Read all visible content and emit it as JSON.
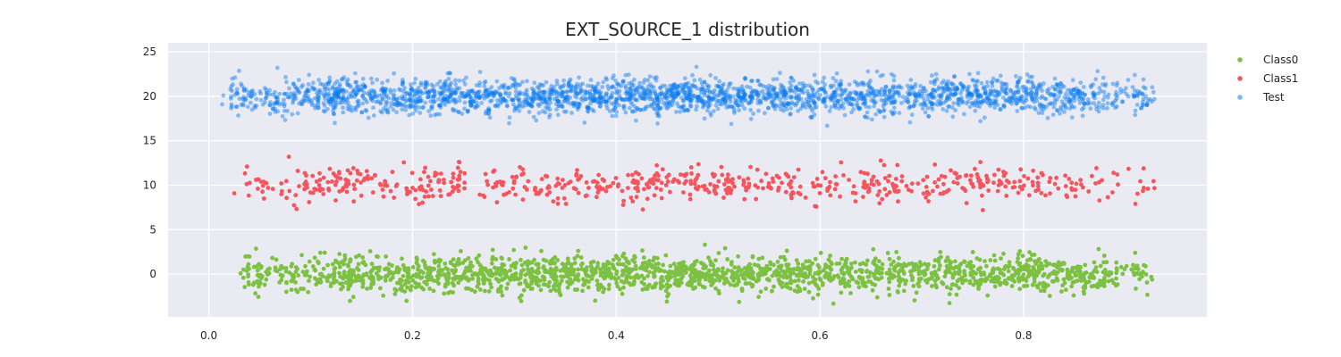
{
  "chart_data": {
    "type": "scatter",
    "title": "EXT_SOURCE_1 distribution",
    "xlabel": "",
    "ylabel": "",
    "xlim": [
      -0.04,
      0.98
    ],
    "ylim": [
      -4.8,
      26
    ],
    "xticks": [
      0.0,
      0.2,
      0.4,
      0.6,
      0.8
    ],
    "xtick_labels": [
      "0.0",
      "0.2",
      "0.4",
      "0.6",
      "0.8"
    ],
    "yticks": [
      0,
      5,
      10,
      15,
      20,
      25
    ],
    "ytick_labels": [
      "0",
      "5",
      "10",
      "15",
      "20",
      "25"
    ],
    "grid": true,
    "legend_position": "outside-top-right",
    "series": [
      {
        "name": "Class0",
        "color": "#7dc142",
        "y_center": 0,
        "y_spread": 1.0,
        "x_range": [
          0.03,
          0.93
        ],
        "approx_points": 5500,
        "opacity": 1.0
      },
      {
        "name": "Class1",
        "color": "#f5555d",
        "y_center": 10,
        "y_spread": 1.0,
        "x_range": [
          0.025,
          0.93
        ],
        "approx_points": 650,
        "opacity": 1.0
      },
      {
        "name": "Test",
        "color": "#0a7cf0",
        "y_center": 20,
        "y_spread": 1.0,
        "x_range": [
          0.013,
          0.93
        ],
        "approx_points": 7500,
        "opacity": 0.45
      }
    ]
  }
}
